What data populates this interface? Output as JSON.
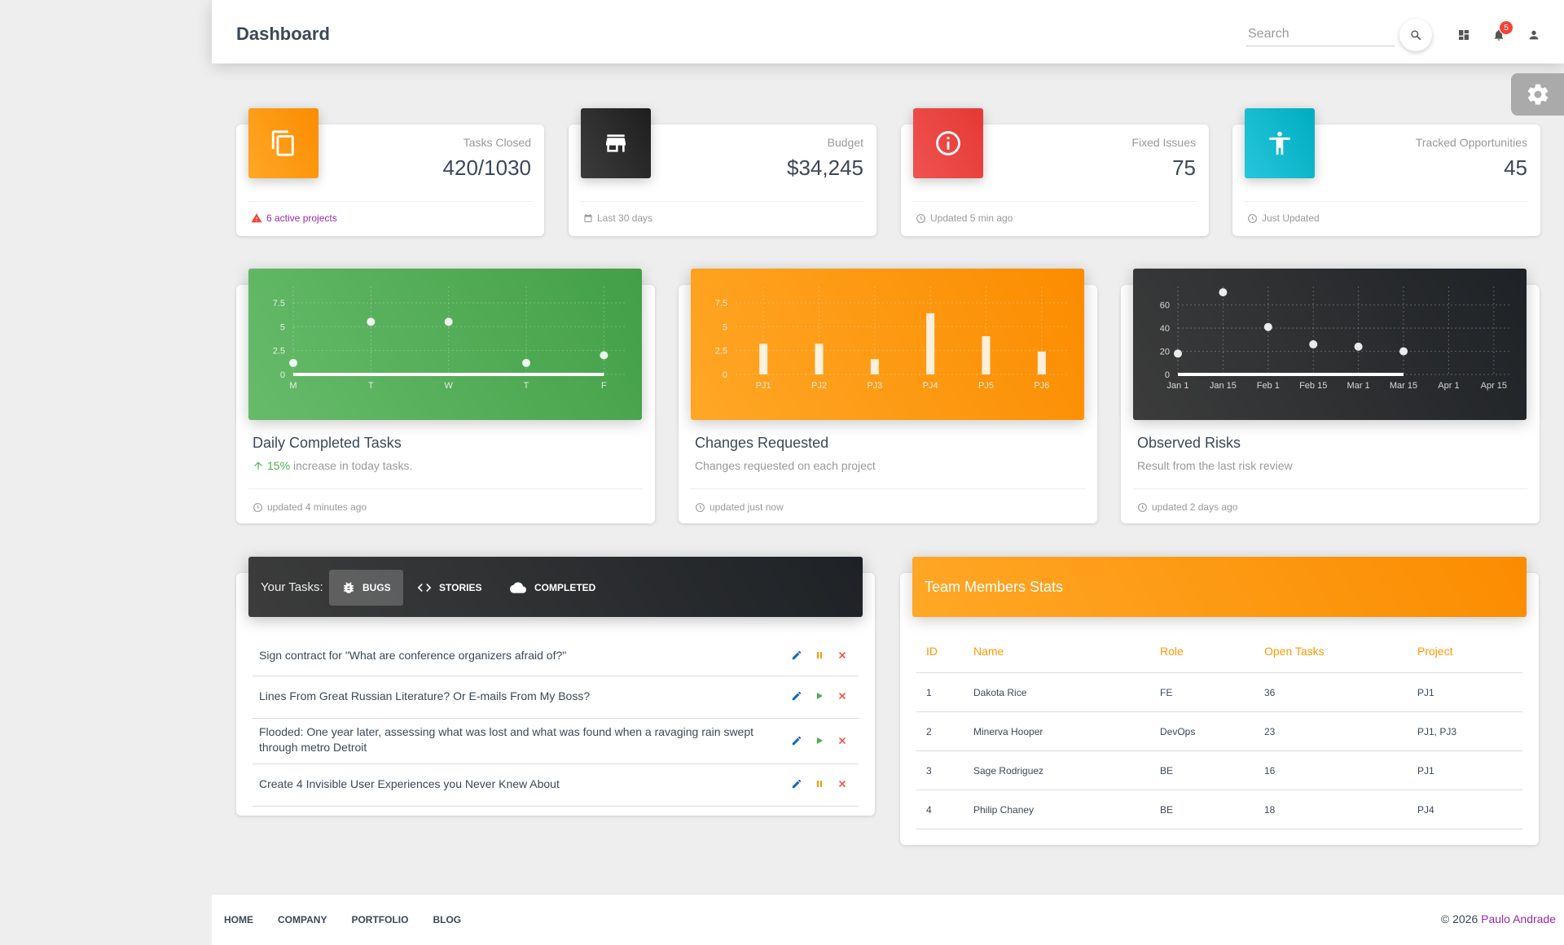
{
  "navbar": {
    "brand": "Dashboard",
    "search_placeholder": "Search",
    "notification_count": "5"
  },
  "stats": [
    {
      "label": "Tasks Closed",
      "value": "420/1030",
      "footer": "6 active projects",
      "icon": "content-copy-icon",
      "color": "#fb8c00"
    },
    {
      "label": "Budget",
      "value": "$34,245",
      "footer": "Last 30 days",
      "icon": "store-icon",
      "color": "#222"
    },
    {
      "label": "Fixed Issues",
      "value": "75",
      "footer": "Updated 5 min ago",
      "icon": "info-icon",
      "color": "#e53935"
    },
    {
      "label": "Tracked Opportunities",
      "value": "45",
      "footer": "Just Updated",
      "icon": "accessibility-icon",
      "color": "#00acc1"
    }
  ],
  "charts": [
    {
      "title": "Daily Completed Tasks",
      "percent": "15%",
      "category": "increase in today tasks.",
      "footer": "updated 4 minutes ago"
    },
    {
      "title": "Changes Requested",
      "category": "Changes requested on each project",
      "footer": "updated just now"
    },
    {
      "title": "Observed Risks",
      "category": "Result from the last risk review",
      "footer": "updated 2 days ago"
    }
  ],
  "chart_data": [
    {
      "type": "scatter",
      "categories": [
        "M",
        "T",
        "W",
        "T",
        "F"
      ],
      "values": [
        1.2,
        5.5,
        5.5,
        1.2,
        2.0
      ],
      "yticks": [
        "0",
        "2.5",
        "5",
        "7.5"
      ],
      "ylim": [
        0,
        9.2
      ],
      "grid": true
    },
    {
      "type": "bar",
      "categories": [
        "PJ1",
        "PJ2",
        "PJ3",
        "PJ4",
        "PJ5",
        "PJ6"
      ],
      "values": [
        3.2,
        3.2,
        1.6,
        6.4,
        4.0,
        2.4
      ],
      "yticks": [
        "0",
        "2.5",
        "5",
        "7.5"
      ],
      "ylim": [
        0,
        9.2
      ],
      "grid": true
    },
    {
      "type": "scatter",
      "categories": [
        "Jan 1",
        "Jan 15",
        "Feb 1",
        "Feb 15",
        "Mar 1",
        "Mar 15",
        "Apr 1",
        "Apr 15"
      ],
      "x_index": [
        0,
        1,
        2,
        3,
        4,
        5
      ],
      "values": [
        18,
        71,
        41,
        26,
        24,
        20
      ],
      "yticks": [
        "0",
        "20",
        "40",
        "60"
      ],
      "ylim": [
        0,
        76
      ],
      "grid": true
    }
  ],
  "tasks": {
    "label": "Your Tasks:",
    "tabs": [
      {
        "label": "BUGS",
        "icon": "bug-icon",
        "active": true
      },
      {
        "label": "STORIES",
        "icon": "code-icon",
        "active": false
      },
      {
        "label": "COMPLETED",
        "icon": "cloud-icon",
        "active": false
      }
    ],
    "items": [
      {
        "text": "Sign contract for \"What are conference organizers afraid of?\"",
        "state": "pause"
      },
      {
        "text": "Lines From Great Russian Literature? Or E-mails From My Boss?",
        "state": "play"
      },
      {
        "text": "Flooded: One year later, assessing what was lost and what was found when a ravaging rain swept through metro Detroit",
        "state": "play"
      },
      {
        "text": "Create 4 Invisible User Experiences you Never Knew About",
        "state": "pause"
      }
    ]
  },
  "team": {
    "title": "Team Members Stats",
    "columns": [
      "ID",
      "Name",
      "Role",
      "Open Tasks",
      "Project"
    ],
    "rows": [
      [
        "1",
        "Dakota Rice",
        "FE",
        "36",
        "PJ1"
      ],
      [
        "2",
        "Minerva Hooper",
        "DevOps",
        "23",
        "PJ1, PJ3"
      ],
      [
        "3",
        "Sage Rodriguez",
        "BE",
        "16",
        "PJ1"
      ],
      [
        "4",
        "Philip Chaney",
        "BE",
        "18",
        "PJ4"
      ]
    ]
  },
  "footer": {
    "links": [
      "HOME",
      "COMPANY",
      "PORTFOLIO",
      "BLOG"
    ],
    "copyright": "© 2026",
    "author": "Paulo Andrade"
  },
  "colors": {
    "orange": "#fb8c00",
    "green": "#4caf50",
    "dark": "#222222",
    "red": "#e53935",
    "cyan": "#00acc1",
    "purple": "#9c27b0"
  }
}
